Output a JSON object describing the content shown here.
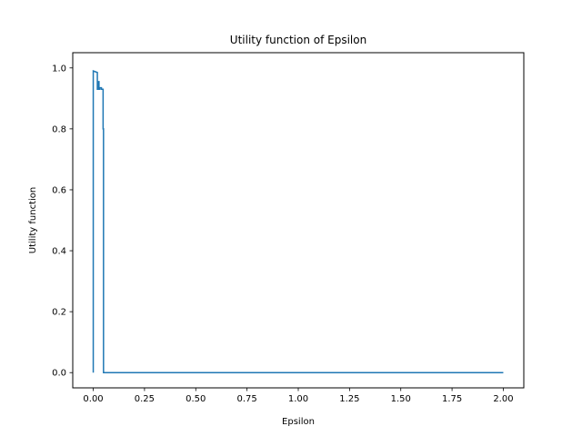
{
  "chart_data": {
    "type": "line",
    "title": "Utility function of Epsilon",
    "xlabel": "Epsilon",
    "ylabel": "Utility function",
    "xlim": [
      -0.1,
      2.1
    ],
    "ylim": [
      -0.05,
      1.05
    ],
    "xticks": [
      0.0,
      0.25,
      0.5,
      0.75,
      1.0,
      1.25,
      1.5,
      1.75,
      2.0
    ],
    "xtick_labels": [
      "0.00",
      "0.25",
      "0.50",
      "0.75",
      "1.00",
      "1.25",
      "1.50",
      "1.75",
      "2.00"
    ],
    "yticks": [
      0.0,
      0.2,
      0.4,
      0.6,
      0.8,
      1.0
    ],
    "ytick_labels": [
      "0.0",
      "0.2",
      "0.4",
      "0.6",
      "0.8",
      "1.0"
    ],
    "grid": false,
    "series": [
      {
        "color": "#1f77b4",
        "x": [
          0.0,
          0.0,
          0.02,
          0.02,
          0.025,
          0.025,
          0.028,
          0.028,
          0.032,
          0.032,
          0.04,
          0.04,
          0.048,
          0.048,
          0.05,
          0.05,
          2.0
        ],
        "y": [
          0.0,
          0.99,
          0.985,
          0.93,
          0.93,
          0.955,
          0.955,
          0.93,
          0.93,
          0.935,
          0.935,
          0.93,
          0.93,
          0.8,
          0.8,
          0.0,
          0.0
        ]
      }
    ]
  }
}
